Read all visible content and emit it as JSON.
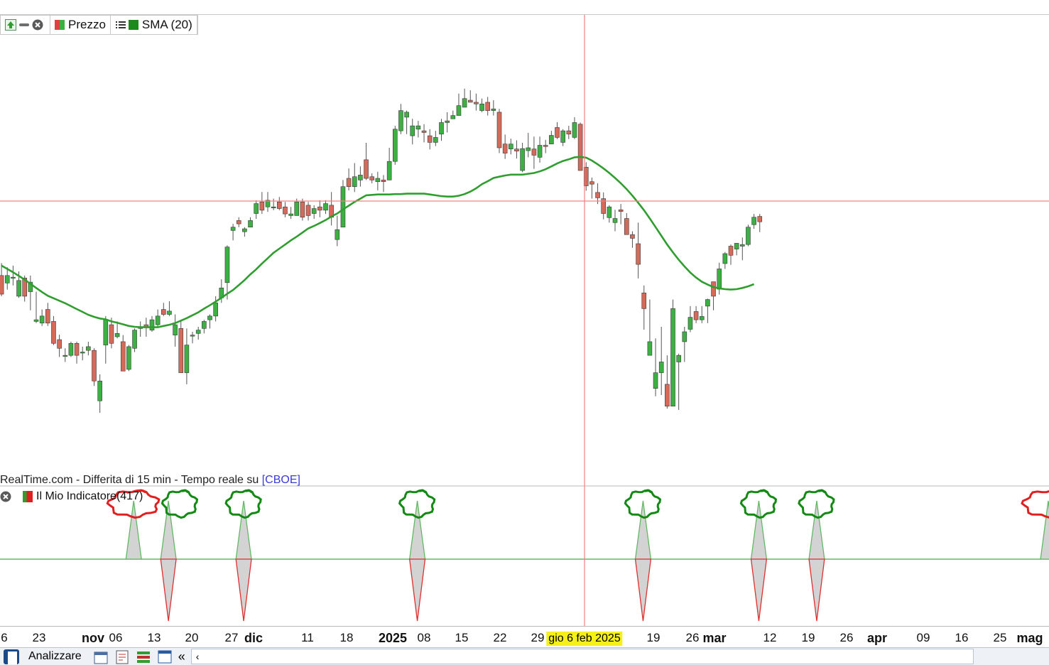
{
  "legend": {
    "price_label": "Prezzo",
    "sma_label": "SMA (20)"
  },
  "source_note": {
    "text": "RealTime.com - Differita di 15 min - Tempo reale su ",
    "link": "[CBOE]"
  },
  "indicator_legend": {
    "label": "Il Mio Indicatore(417)"
  },
  "crosshair": {
    "date_label": "gio 6 feb 2025"
  },
  "toolbar": {
    "analyzer_label": "Analizzare",
    "scroll_left": "«",
    "scroll_arrow": "‹"
  },
  "colors": {
    "bull": "#3cb043",
    "bear": "#d46a5a",
    "sma": "#2f9e2f",
    "crosshair": "#f08080",
    "signal_up": "#63b863",
    "signal_down": "#e03030",
    "circle_green": "#138a13",
    "circle_red": "#e02020"
  },
  "chart_data": [
    {
      "type": "candlestick",
      "series": [
        {
          "name": "Prezzo"
        },
        {
          "name": "SMA (20)"
        }
      ],
      "x_ticks": [
        {
          "label": "6",
          "bold": false
        },
        {
          "label": "23",
          "bold": false
        },
        {
          "label": "nov",
          "bold": true
        },
        {
          "label": "06",
          "bold": false
        },
        {
          "label": "13",
          "bold": false
        },
        {
          "label": "20",
          "bold": false
        },
        {
          "label": "27",
          "bold": false
        },
        {
          "label": "dic",
          "bold": true
        },
        {
          "label": "11",
          "bold": false
        },
        {
          "label": "18",
          "bold": false
        },
        {
          "label": "2025",
          "bold": true
        },
        {
          "label": "08",
          "bold": false
        },
        {
          "label": "15",
          "bold": false
        },
        {
          "label": "22",
          "bold": false
        },
        {
          "label": "29",
          "bold": false
        },
        {
          "label": "19",
          "bold": false
        },
        {
          "label": "26",
          "bold": false
        },
        {
          "label": "mar",
          "bold": true
        },
        {
          "label": "12",
          "bold": false
        },
        {
          "label": "19",
          "bold": false
        },
        {
          "label": "26",
          "bold": false
        },
        {
          "label": "apr",
          "bold": true
        },
        {
          "label": "09",
          "bold": false
        },
        {
          "label": "16",
          "bold": false
        },
        {
          "label": "25",
          "bold": false
        },
        {
          "label": "mag",
          "bold": true
        }
      ],
      "price_range": [
        0,
        100
      ],
      "candles": [
        [
          49.0,
          44.5,
          52.0,
          44.0
        ],
        [
          47.2,
          49.0,
          51.0,
          45.6
        ],
        [
          48.4,
          48.6,
          51.4,
          46.6
        ],
        [
          44.0,
          47.8,
          50.0,
          43.6
        ],
        [
          48.4,
          44.0,
          49.0,
          42.7
        ],
        [
          45.1,
          47.4,
          49.0,
          40.6
        ],
        [
          37.9,
          38.3,
          45.1,
          37.5
        ],
        [
          37.5,
          39.2,
          40.8,
          36.8
        ],
        [
          40.8,
          37.5,
          42.4,
          36.8
        ],
        [
          37.9,
          32.6,
          39.2,
          32.2
        ],
        [
          33.5,
          31.4,
          34.7,
          29.3
        ],
        [
          29.7,
          29.7,
          31.4,
          28.1
        ],
        [
          29.7,
          32.6,
          33.0,
          29.3
        ],
        [
          32.6,
          29.7,
          33.0,
          27.7
        ],
        [
          30.5,
          30.5,
          31.8,
          28.5
        ],
        [
          30.9,
          31.8,
          33.0,
          29.7
        ],
        [
          30.9,
          23.5,
          31.4,
          22.3
        ],
        [
          18.7,
          23.5,
          25.1,
          15.8
        ],
        [
          32.2,
          38.3,
          39.2,
          27.7
        ],
        [
          37.1,
          32.6,
          38.8,
          31.4
        ],
        [
          34.2,
          35.0,
          37.9,
          33.8
        ],
        [
          33.0,
          25.9,
          34.6,
          25.9
        ],
        [
          26.3,
          31.8,
          32.2,
          25.9
        ],
        [
          31.4,
          35.8,
          36.2,
          30.5
        ],
        [
          36.2,
          36.6,
          37.9,
          34.2
        ],
        [
          37.1,
          36.6,
          38.8,
          34.2
        ],
        [
          35.8,
          38.3,
          39.2,
          35.4
        ],
        [
          37.1,
          39.2,
          40.8,
          36.6
        ],
        [
          40.8,
          39.6,
          42.4,
          39.2
        ],
        [
          39.6,
          40.4,
          42.8,
          39.2
        ],
        [
          34.6,
          37.1,
          39.6,
          31.8
        ],
        [
          36.2,
          25.5,
          37.9,
          25.5
        ],
        [
          25.5,
          32.2,
          36.2,
          22.7
        ],
        [
          34.6,
          34.6,
          35.4,
          32.6
        ],
        [
          35.0,
          35.8,
          36.6,
          33.5
        ],
        [
          36.2,
          37.9,
          38.3,
          35.0
        ],
        [
          38.3,
          39.2,
          39.6,
          36.2
        ],
        [
          39.2,
          42.4,
          44.0,
          37.9
        ],
        [
          43.6,
          46.0,
          48.1,
          42.4
        ],
        [
          47.3,
          55.9,
          56.3,
          43.2
        ],
        [
          59.9,
          60.7,
          61.5,
          57.5
        ],
        [
          62.3,
          61.5,
          63.1,
          60.7
        ],
        [
          59.6,
          60.3,
          60.7,
          58.4
        ],
        [
          60.7,
          62.3,
          63.1,
          60.7
        ],
        [
          64.0,
          66.4,
          67.2,
          62.7
        ],
        [
          66.8,
          64.8,
          69.2,
          63.9
        ],
        [
          65.6,
          67.2,
          69.2,
          64.4
        ],
        [
          65.6,
          65.6,
          67.6,
          64.8
        ],
        [
          66.8,
          65.2,
          68.0,
          64.8
        ],
        [
          65.6,
          63.9,
          66.8,
          63.1
        ],
        [
          63.5,
          63.9,
          65.6,
          62.7
        ],
        [
          63.5,
          66.8,
          67.6,
          63.5
        ],
        [
          66.8,
          63.1,
          67.6,
          62.3
        ],
        [
          66.0,
          63.5,
          66.8,
          62.3
        ],
        [
          64.0,
          65.2,
          66.0,
          62.7
        ],
        [
          65.6,
          64.8,
          67.2,
          63.1
        ],
        [
          64.8,
          66.4,
          67.2,
          63.9
        ],
        [
          66.0,
          63.1,
          69.2,
          61.1
        ],
        [
          57.7,
          60.1,
          63.5,
          56.1
        ],
        [
          60.7,
          70.5,
          72.1,
          60.7
        ],
        [
          72.5,
          70.5,
          74.9,
          69.6
        ],
        [
          70.5,
          72.9,
          76.2,
          69.2
        ],
        [
          72.1,
          73.3,
          75.4,
          70.5
        ],
        [
          77.0,
          72.5,
          81.1,
          72.1
        ],
        [
          72.9,
          72.1,
          73.7,
          71.3
        ],
        [
          71.7,
          72.5,
          74.1,
          69.6
        ],
        [
          72.1,
          71.7,
          73.3,
          69.2
        ],
        [
          72.1,
          76.6,
          79.9,
          72.1
        ],
        [
          76.6,
          84.4,
          85.2,
          75.8
        ],
        [
          84.0,
          88.9,
          90.5,
          83.2
        ],
        [
          87.3,
          88.5,
          88.9,
          83.2
        ],
        [
          82.8,
          85.2,
          86.9,
          80.7
        ],
        [
          84.4,
          85.2,
          86.4,
          82.4
        ],
        [
          84.0,
          83.6,
          85.6,
          81.2
        ],
        [
          82.8,
          81.2,
          84.4,
          79.5
        ],
        [
          81.2,
          82.4,
          84.0,
          80.3
        ],
        [
          83.2,
          86.0,
          86.9,
          81.6
        ],
        [
          86.0,
          86.4,
          88.5,
          83.6
        ],
        [
          86.9,
          87.7,
          88.9,
          86.9
        ],
        [
          87.7,
          90.1,
          93.0,
          87.7
        ],
        [
          89.7,
          91.8,
          94.2,
          89.7
        ],
        [
          91.4,
          90.9,
          93.8,
          90.9
        ],
        [
          90.9,
          90.5,
          93.0,
          88.9
        ],
        [
          88.9,
          90.5,
          91.8,
          88.5
        ],
        [
          90.9,
          88.9,
          92.2,
          87.7
        ],
        [
          88.9,
          89.3,
          91.4,
          87.7
        ],
        [
          88.5,
          79.9,
          89.3,
          78.6
        ],
        [
          80.8,
          78.6,
          83.1,
          77.2
        ],
        [
          79.6,
          80.8,
          82.1,
          78.3
        ],
        [
          79.6,
          79.1,
          81.7,
          77.3
        ],
        [
          74.4,
          79.7,
          81.1,
          74.0
        ],
        [
          79.2,
          79.9,
          83.5,
          77.6
        ],
        [
          79.6,
          78.1,
          82.6,
          74.8
        ],
        [
          77.6,
          80.5,
          82.6,
          76.3
        ],
        [
          80.5,
          80.2,
          81.8,
          78.6
        ],
        [
          80.8,
          82.9,
          84.0,
          80.8
        ],
        [
          84.8,
          82.4,
          86.1,
          82.0
        ],
        [
          81.2,
          84.0,
          84.4,
          80.3
        ],
        [
          84.0,
          83.2,
          85.2,
          82.0
        ],
        [
          82.4,
          86.0,
          87.3,
          82.0
        ],
        [
          85.6,
          74.4,
          86.0,
          74.4
        ],
        [
          75.2,
          70.7,
          76.4,
          69.5
        ],
        [
          71.7,
          71.1,
          72.7,
          67.6
        ],
        [
          69.1,
          67.8,
          71.3,
          66.3
        ],
        [
          67.6,
          64.0,
          69.1,
          62.6
        ],
        [
          63.0,
          65.6,
          66.0,
          61.8
        ],
        [
          61.8,
          62.8,
          64.9,
          59.7
        ],
        [
          64.9,
          64.5,
          66.3,
          61.4
        ],
        [
          62.8,
          58.9,
          64.1,
          58.9
        ],
        [
          58.9,
          58.0,
          59.7,
          55.7
        ],
        [
          56.7,
          51.7,
          61.8,
          48.3
        ],
        [
          44.8,
          41.0,
          46.6,
          35.9
        ],
        [
          29.7,
          33.0,
          43.2,
          31.4
        ],
        [
          21.7,
          25.5,
          33.8,
          19.8
        ],
        [
          25.5,
          28.1,
          36.6,
          20.1
        ],
        [
          22.7,
          17.4,
          29.7,
          16.8
        ],
        [
          17.4,
          41.0,
          43.2,
          17.4
        ],
        [
          28.1,
          29.7,
          30.1,
          16.5
        ],
        [
          33.0,
          35.4,
          36.6,
          28.1
        ],
        [
          36.0,
          38.9,
          41.6,
          35.3
        ],
        [
          40.3,
          38.3,
          41.6,
          37.5
        ],
        [
          38.3,
          39.1,
          41.6,
          37.5
        ],
        [
          41.6,
          43.2,
          43.4,
          37.5
        ],
        [
          47.5,
          44.0,
          47.5,
          40.6
        ],
        [
          45.7,
          50.6,
          52.1,
          44.4
        ],
        [
          51.9,
          54.3,
          54.7,
          50.6
        ],
        [
          56.1,
          53.9,
          56.5,
          51.6
        ],
        [
          55.4,
          56.8,
          56.8,
          53.9
        ],
        [
          56.1,
          56.5,
          58.2,
          52.7
        ],
        [
          56.5,
          60.7,
          61.3,
          56.1
        ],
        [
          61.3,
          63.1,
          63.9,
          60.3
        ],
        [
          63.3,
          62.0,
          63.9,
          59.5
        ]
      ],
      "sma_values": [
        51.4,
        50.6,
        49.8,
        48.9,
        48.0,
        47.0,
        46.0,
        45.0,
        44.1,
        43.5,
        42.9,
        42.3,
        41.6,
        40.9,
        40.2,
        39.5,
        39.0,
        38.6,
        38.4,
        37.9,
        37.6,
        37.2,
        36.8,
        36.6,
        36.5,
        36.5,
        36.5,
        36.5,
        36.8,
        37.1,
        37.5,
        38.1,
        38.7,
        39.4,
        40.1,
        41.0,
        41.8,
        42.7,
        43.6,
        44.6,
        45.5,
        46.7,
        47.9,
        49.3,
        50.5,
        51.9,
        53.2,
        54.5,
        55.5,
        56.5,
        57.5,
        58.4,
        59.4,
        60.4,
        61.0,
        61.7,
        62.4,
        63.3,
        64.0,
        65.0,
        65.9,
        66.8,
        67.6,
        68.4,
        68.5,
        68.6,
        68.6,
        68.6,
        68.7,
        68.7,
        68.8,
        68.8,
        68.8,
        68.8,
        68.6,
        68.4,
        68.2,
        68.1,
        68.1,
        68.3,
        68.7,
        69.3,
        70.1,
        71.1,
        71.8,
        72.6,
        72.9,
        73.2,
        73.4,
        73.4,
        73.4,
        73.6,
        73.8,
        74.2,
        74.7,
        75.4,
        76.1,
        76.7,
        77.1,
        77.6,
        77.7,
        77.5,
        76.8,
        75.9,
        74.9,
        73.8,
        72.6,
        71.3,
        69.9,
        68.3,
        66.6,
        64.8,
        62.8,
        60.7,
        58.6,
        56.5,
        54.6,
        52.8,
        51.2,
        49.7,
        48.5,
        47.5,
        46.8,
        46.2,
        45.9,
        45.7,
        45.6,
        45.7,
        46.0,
        46.4,
        46.9
      ]
    },
    {
      "type": "area",
      "series": [
        {
          "name": "Il Mio Indicatore(417)"
        }
      ],
      "baseline": 0,
      "y_range": [
        -1,
        1
      ],
      "signals": [
        {
          "index": 23,
          "value": 1
        },
        {
          "index": 29,
          "value": 1
        },
        {
          "index": 29,
          "value": -1
        },
        {
          "index": 42,
          "value": 1
        },
        {
          "index": 42,
          "value": -1
        },
        {
          "index": 72,
          "value": 1
        },
        {
          "index": 72,
          "value": -1
        },
        {
          "index": 111,
          "value": 1
        },
        {
          "index": 111,
          "value": -1
        },
        {
          "index": 131,
          "value": 1
        },
        {
          "index": 131,
          "value": -1
        },
        {
          "index": 141,
          "value": 1
        },
        {
          "index": 141,
          "value": -1
        },
        {
          "index": 181,
          "value": 1
        }
      ],
      "markers": [
        {
          "index": 23,
          "color": "red"
        },
        {
          "index": 31,
          "color": "green"
        },
        {
          "index": 42,
          "color": "green"
        },
        {
          "index": 72,
          "color": "green"
        },
        {
          "index": 111,
          "color": "green"
        },
        {
          "index": 131,
          "color": "green"
        },
        {
          "index": 141,
          "color": "green"
        },
        {
          "index": 181,
          "color": "red"
        }
      ]
    }
  ]
}
